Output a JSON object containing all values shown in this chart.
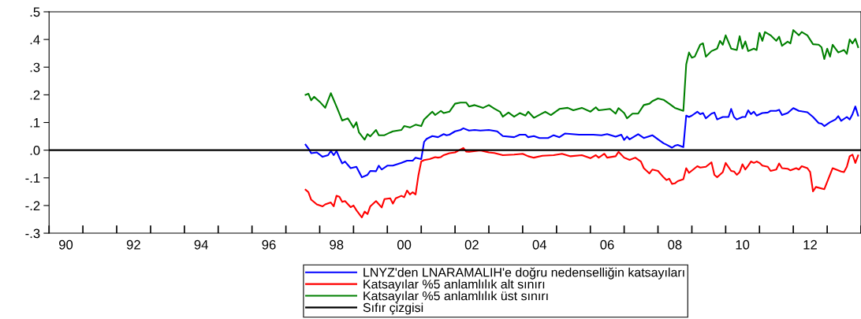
{
  "chart_data": {
    "type": "line",
    "xlim": [
      "1990-01",
      "2014-01"
    ],
    "ylim": [
      -0.3,
      0.5
    ],
    "xticks": [
      {
        "value": "1990-07",
        "label": "90"
      },
      {
        "value": "1992-07",
        "label": "92"
      },
      {
        "value": "1994-07",
        "label": "94"
      },
      {
        "value": "1996-07",
        "label": "96"
      },
      {
        "value": "1998-07",
        "label": "98"
      },
      {
        "value": "2000-07",
        "label": "00"
      },
      {
        "value": "2002-07",
        "label": "02"
      },
      {
        "value": "2004-07",
        "label": "04"
      },
      {
        "value": "2006-07",
        "label": "06"
      },
      {
        "value": "2008-07",
        "label": "08"
      },
      {
        "value": "2010-07",
        "label": "10"
      },
      {
        "value": "2012-07",
        "label": "12"
      }
    ],
    "yticks": [
      {
        "value": -0.3,
        "label": "-.3"
      },
      {
        "value": -0.2,
        "label": "-.2"
      },
      {
        "value": -0.1,
        "label": "-.1"
      },
      {
        "value": 0.0,
        "label": ".0"
      },
      {
        "value": 0.1,
        "label": ".1"
      },
      {
        "value": 0.2,
        "label": ".2"
      },
      {
        "value": 0.3,
        "label": ".3"
      },
      {
        "value": 0.4,
        "label": ".4"
      },
      {
        "value": 0.5,
        "label": ".5"
      }
    ],
    "grid": false,
    "legend": "bottom",
    "marker": "none",
    "line_style": "solid",
    "series": [
      {
        "name": "LNYZ'den LNARAMALIH'e doğru nedenselliğin katsayıları",
        "color": "#0000ff",
        "x": [
          "1997-08",
          "1997-09",
          "1997-10",
          "1997-12",
          "1998-02",
          "1998-04",
          "1998-05",
          "1998-06",
          "1998-07",
          "1998-08",
          "1998-09",
          "1998-10",
          "1998-12",
          "1999-02",
          "1999-04",
          "1999-06",
          "1999-07",
          "1999-09",
          "1999-10",
          "1999-11",
          "2000-01",
          "2000-03",
          "2000-06",
          "2000-08",
          "2000-10",
          "2000-11",
          "2001-01",
          "2001-02",
          "2001-03",
          "2001-05",
          "2001-07",
          "2001-09",
          "2001-10",
          "2001-11",
          "2002-01",
          "2002-03",
          "2002-04",
          "2002-06",
          "2002-08",
          "2002-10",
          "2003-01",
          "2003-04",
          "2003-06",
          "2003-10",
          "2003-12",
          "2004-02",
          "2004-03",
          "2004-05",
          "2004-07",
          "2004-10",
          "2004-12",
          "2005-02",
          "2005-04",
          "2005-09",
          "2006-02",
          "2006-05",
          "2006-07",
          "2006-10",
          "2006-12",
          "2007-01",
          "2007-02",
          "2007-03",
          "2007-06",
          "2007-08",
          "2007-11",
          "2008-01",
          "2008-03",
          "2008-04",
          "2008-06",
          "2008-07",
          "2008-08",
          "2008-10",
          "2008-11",
          "2008-12",
          "2009-01",
          "2009-03",
          "2009-04",
          "2009-05",
          "2009-06",
          "2009-08",
          "2009-09",
          "2009-10",
          "2009-12",
          "2010-02",
          "2010-03",
          "2010-04",
          "2010-05",
          "2010-07",
          "2010-08",
          "2010-09",
          "2010-10",
          "2010-11",
          "2010-12",
          "2011-02",
          "2011-04",
          "2011-05",
          "2011-07",
          "2011-08",
          "2011-09",
          "2011-11",
          "2012-01",
          "2012-03",
          "2012-06",
          "2012-08",
          "2012-10",
          "2012-11",
          "2012-12",
          "2013-02",
          "2013-04",
          "2013-05",
          "2013-06",
          "2013-08",
          "2013-09",
          "2013-10",
          "2013-11",
          "2013-12"
        ],
        "values": [
          0.02,
          0.006,
          -0.011,
          -0.008,
          -0.024,
          -0.018,
          -0.003,
          -0.018,
          -0.003,
          -0.027,
          -0.048,
          -0.041,
          -0.065,
          -0.06,
          -0.098,
          -0.089,
          -0.075,
          -0.076,
          -0.056,
          -0.07,
          -0.056,
          -0.056,
          -0.046,
          -0.038,
          -0.038,
          -0.027,
          -0.032,
          0.03,
          0.041,
          0.051,
          0.047,
          0.058,
          0.054,
          0.056,
          0.068,
          0.073,
          0.079,
          0.071,
          0.073,
          0.071,
          0.073,
          0.068,
          0.051,
          0.047,
          0.056,
          0.056,
          0.047,
          0.051,
          0.044,
          0.044,
          0.054,
          0.047,
          0.06,
          0.056,
          0.056,
          0.054,
          0.058,
          0.049,
          0.056,
          0.037,
          0.049,
          0.039,
          0.058,
          0.044,
          0.054,
          0.039,
          0.025,
          0.02,
          0.009,
          0.016,
          0.019,
          0.011,
          0.125,
          0.12,
          0.125,
          0.139,
          0.13,
          0.134,
          0.115,
          0.132,
          0.136,
          0.111,
          0.12,
          0.12,
          0.149,
          0.12,
          0.111,
          0.12,
          0.12,
          0.144,
          0.13,
          0.139,
          0.125,
          0.134,
          0.136,
          0.142,
          0.142,
          0.146,
          0.127,
          0.134,
          0.152,
          0.142,
          0.137,
          0.12,
          0.098,
          0.096,
          0.087,
          0.101,
          0.111,
          0.123,
          0.106,
          0.12,
          0.111,
          0.13,
          0.158,
          0.125
        ]
      },
      {
        "name": "Katsayılar %5 anlamlılık alt sınırı",
        "color": "#ff0000",
        "x": [
          "1997-08",
          "1997-09",
          "1997-10",
          "1997-12",
          "1998-02",
          "1998-03",
          "1998-05",
          "1998-06",
          "1998-07",
          "1998-08",
          "1998-09",
          "1998-10",
          "1998-12",
          "1999-01",
          "1999-02",
          "1999-04",
          "1999-05",
          "1999-06",
          "1999-07",
          "1999-09",
          "1999-11",
          "1999-12",
          "2000-02",
          "2000-03",
          "2000-04",
          "2000-06",
          "2000-07",
          "2000-08",
          "2000-09",
          "2000-10",
          "2000-11",
          "2000-12",
          "2001-01",
          "2001-02",
          "2001-04",
          "2001-06",
          "2001-07",
          "2001-08",
          "2001-09",
          "2001-11",
          "2002-01",
          "2002-04",
          "2002-05",
          "2002-06",
          "2002-10",
          "2003-01",
          "2003-03",
          "2003-06",
          "2003-10",
          "2004-01",
          "2004-03",
          "2004-05",
          "2004-08",
          "2004-12",
          "2005-03",
          "2005-06",
          "2005-10",
          "2006-01",
          "2006-03",
          "2006-04",
          "2006-06",
          "2006-07",
          "2006-10",
          "2006-11",
          "2007-01",
          "2007-03",
          "2007-05",
          "2007-07",
          "2007-08",
          "2007-10",
          "2007-11",
          "2008-01",
          "2008-03",
          "2008-04",
          "2008-05",
          "2008-06",
          "2008-07",
          "2008-08",
          "2008-10",
          "2008-11",
          "2008-12",
          "2009-03",
          "2009-04",
          "2009-06",
          "2009-08",
          "2009-09",
          "2009-10",
          "2009-12",
          "2010-01",
          "2010-03",
          "2010-04",
          "2010-05",
          "2010-06",
          "2010-07",
          "2010-08",
          "2010-09",
          "2010-10",
          "2010-11",
          "2010-12",
          "2011-01",
          "2011-02",
          "2011-04",
          "2011-05",
          "2011-07",
          "2011-08",
          "2011-09",
          "2011-11",
          "2011-12",
          "2012-02",
          "2012-03",
          "2012-04",
          "2012-06",
          "2012-07",
          "2012-08",
          "2012-09",
          "2012-12",
          "2013-03",
          "2013-06",
          "2013-07",
          "2013-08",
          "2013-09",
          "2013-10",
          "2013-11",
          "2013-12"
        ],
        "values": [
          -0.143,
          -0.152,
          -0.179,
          -0.196,
          -0.203,
          -0.196,
          -0.189,
          -0.203,
          -0.165,
          -0.168,
          -0.187,
          -0.184,
          -0.206,
          -0.2,
          -0.217,
          -0.243,
          -0.222,
          -0.231,
          -0.203,
          -0.184,
          -0.207,
          -0.177,
          -0.174,
          -0.193,
          -0.174,
          -0.165,
          -0.17,
          -0.146,
          -0.16,
          -0.152,
          -0.16,
          -0.092,
          -0.041,
          -0.036,
          -0.032,
          -0.025,
          -0.027,
          -0.025,
          -0.018,
          -0.011,
          -0.008,
          0.008,
          -0.005,
          -0.006,
          -0.001,
          -0.008,
          -0.01,
          -0.018,
          -0.016,
          -0.013,
          -0.022,
          -0.027,
          -0.02,
          -0.018,
          -0.013,
          -0.022,
          -0.018,
          -0.029,
          -0.018,
          -0.027,
          -0.013,
          -0.027,
          -0.022,
          -0.006,
          -0.027,
          -0.035,
          -0.027,
          -0.041,
          -0.065,
          -0.084,
          -0.07,
          -0.075,
          -0.098,
          -0.108,
          -0.103,
          -0.122,
          -0.12,
          -0.112,
          -0.105,
          -0.065,
          -0.082,
          -0.058,
          -0.063,
          -0.06,
          -0.044,
          -0.089,
          -0.098,
          -0.079,
          -0.046,
          -0.075,
          -0.077,
          -0.089,
          -0.079,
          -0.051,
          -0.07,
          -0.056,
          -0.041,
          -0.046,
          -0.041,
          -0.046,
          -0.056,
          -0.06,
          -0.075,
          -0.07,
          -0.048,
          -0.065,
          -0.067,
          -0.073,
          -0.065,
          -0.07,
          -0.058,
          -0.065,
          -0.079,
          -0.149,
          -0.133,
          -0.141,
          -0.065,
          -0.077,
          -0.079,
          -0.06,
          -0.022,
          -0.016,
          -0.046,
          -0.019
        ]
      },
      {
        "name": "Katsayılar %5 anlamlılık üst sınırı",
        "color": "#008000",
        "x": [
          "1997-08",
          "1997-09",
          "1997-10",
          "1997-11",
          "1998-01",
          "1998-03",
          "1998-05",
          "1998-07",
          "1998-09",
          "1998-11",
          "1999-01",
          "1999-02",
          "1999-03",
          "1999-05",
          "1999-06",
          "1999-07",
          "1999-09",
          "1999-10",
          "1999-12",
          "2000-02",
          "2000-03",
          "2000-06",
          "2000-07",
          "2000-09",
          "2000-11",
          "2001-01",
          "2001-02",
          "2001-04",
          "2001-05",
          "2001-06",
          "2001-08",
          "2001-09",
          "2001-11",
          "2002-01",
          "2002-03",
          "2002-05",
          "2002-06",
          "2002-08",
          "2002-11",
          "2003-01",
          "2003-03",
          "2003-05",
          "2003-06",
          "2003-08",
          "2003-10",
          "2003-12",
          "2004-02",
          "2004-03",
          "2004-05",
          "2004-09",
          "2004-11",
          "2005-02",
          "2005-05",
          "2005-07",
          "2005-10",
          "2006-01",
          "2006-03",
          "2006-04",
          "2006-08",
          "2006-10",
          "2006-11",
          "2007-01",
          "2007-02",
          "2007-04",
          "2007-06",
          "2007-08",
          "2007-10",
          "2007-11",
          "2008-01",
          "2008-03",
          "2008-05",
          "2008-07",
          "2008-10",
          "2008-11",
          "2008-12",
          "2009-01",
          "2009-02",
          "2009-04",
          "2009-05",
          "2009-06",
          "2009-08",
          "2009-10",
          "2009-11",
          "2009-12",
          "2010-01",
          "2010-03",
          "2010-05",
          "2010-06",
          "2010-07",
          "2010-08",
          "2010-09",
          "2010-11",
          "2010-12",
          "2011-01",
          "2011-02",
          "2011-03",
          "2011-05",
          "2011-07",
          "2011-08",
          "2011-09",
          "2011-11",
          "2011-12",
          "2012-01",
          "2012-03",
          "2012-04",
          "2012-06",
          "2012-08",
          "2012-10",
          "2012-11",
          "2012-12",
          "2013-01",
          "2013-02",
          "2013-03",
          "2013-05",
          "2013-07",
          "2013-08",
          "2013-09",
          "2013-10",
          "2013-11",
          "2013-12"
        ],
        "values": [
          0.2,
          0.204,
          0.18,
          0.193,
          0.175,
          0.153,
          0.206,
          0.158,
          0.107,
          0.115,
          0.082,
          0.101,
          0.064,
          0.038,
          0.058,
          0.05,
          0.073,
          0.054,
          0.054,
          0.064,
          0.068,
          0.073,
          0.087,
          0.082,
          0.092,
          0.087,
          0.111,
          0.13,
          0.139,
          0.127,
          0.142,
          0.134,
          0.139,
          0.168,
          0.172,
          0.172,
          0.158,
          0.163,
          0.153,
          0.163,
          0.15,
          0.139,
          0.121,
          0.136,
          0.121,
          0.134,
          0.125,
          0.139,
          0.117,
          0.139,
          0.127,
          0.149,
          0.153,
          0.144,
          0.153,
          0.139,
          0.155,
          0.144,
          0.149,
          0.132,
          0.152,
          0.134,
          0.115,
          0.132,
          0.132,
          0.163,
          0.168,
          0.177,
          0.187,
          0.182,
          0.168,
          0.153,
          0.142,
          0.31,
          0.353,
          0.334,
          0.338,
          0.381,
          0.386,
          0.338,
          0.358,
          0.367,
          0.395,
          0.381,
          0.415,
          0.367,
          0.362,
          0.412,
          0.367,
          0.393,
          0.358,
          0.367,
          0.362,
          0.424,
          0.395,
          0.427,
          0.415,
          0.395,
          0.41,
          0.377,
          0.392,
          0.386,
          0.434,
          0.415,
          0.427,
          0.415,
          0.383,
          0.381,
          0.372,
          0.329,
          0.367,
          0.338,
          0.381,
          0.353,
          0.362,
          0.348,
          0.4,
          0.386,
          0.402,
          0.372
        ]
      },
      {
        "name": "Sıfır çizgisi",
        "color": "#000000",
        "x": [
          "1990-01",
          "2014-01"
        ],
        "values": [
          0,
          0
        ]
      }
    ]
  }
}
